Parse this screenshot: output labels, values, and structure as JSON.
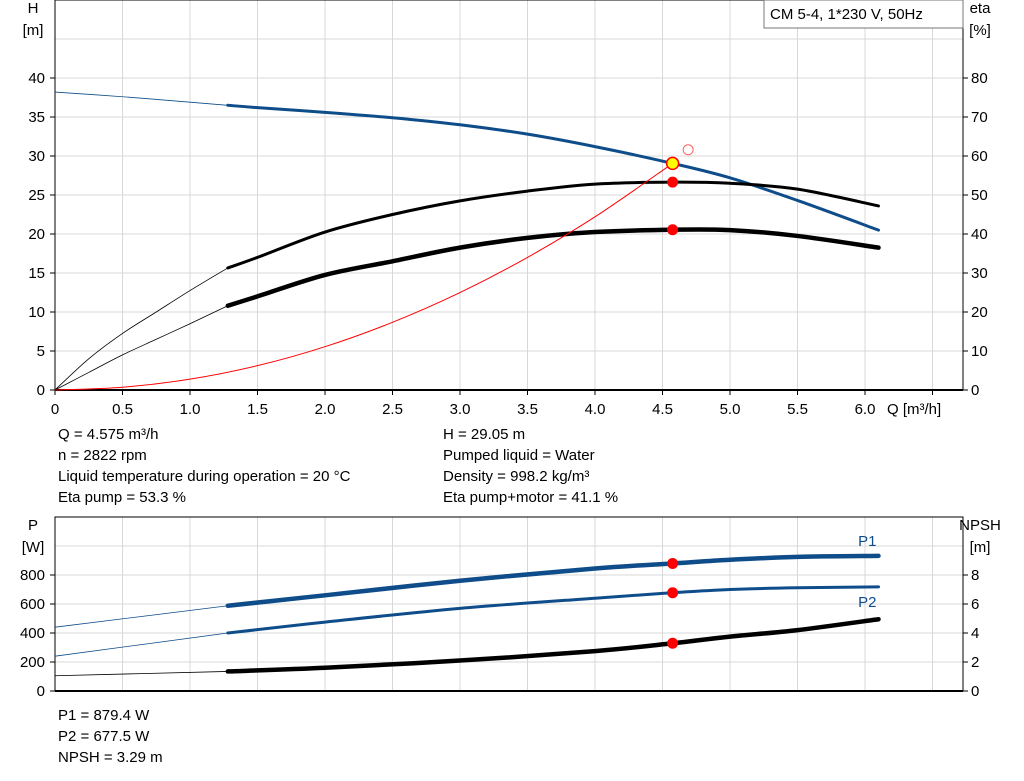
{
  "chart_data": [
    {
      "type": "line",
      "legend_box": "CM 5-4, 1*230 V, 50Hz",
      "legend_placement": "top-right",
      "xlabel": "Q [m³/h]",
      "ylabel_left": [
        "H",
        "[m]"
      ],
      "ylabel_right": [
        "eta",
        "[%]"
      ],
      "xlim": [
        0,
        6.73
      ],
      "ylim_left": [
        0,
        50
      ],
      "ylim_right": [
        0,
        100
      ],
      "xticks": [
        "0",
        "0.5",
        "1.0",
        "1.5",
        "2.0",
        "2.5",
        "3.0",
        "3.5",
        "4.0",
        "4.5",
        "5.0",
        "5.5",
        "6.0"
      ],
      "yticks_left": [
        "0",
        "5",
        "10",
        "15",
        "20",
        "25",
        "30",
        "35",
        "40"
      ],
      "yticks_right": [
        "0",
        "10",
        "20",
        "30",
        "40",
        "50",
        "60",
        "70",
        "80"
      ],
      "grid": true,
      "series": [
        {
          "axis": "left",
          "color": "#0e4d8a",
          "x": [
            0,
            0.5,
            1.0,
            1.28,
            1.5,
            2.0,
            2.5,
            3.0,
            3.5,
            4.0,
            4.575,
            5.0,
            5.5,
            6.1
          ],
          "values": [
            38.2,
            37.6,
            36.9,
            36.5,
            36.2,
            35.6,
            34.9,
            34.0,
            32.8,
            31.2,
            29.05,
            27.2,
            24.3,
            20.5
          ],
          "thin_until": 1.28
        },
        {
          "axis": "right",
          "color": "#000000",
          "x": [
            0,
            0.25,
            0.5,
            0.75,
            1.0,
            1.28,
            1.5,
            2.0,
            2.5,
            3.0,
            3.5,
            4.0,
            4.575,
            5.0,
            5.5,
            6.1
          ],
          "values": [
            0,
            8,
            14.5,
            20,
            25.5,
            31.3,
            34,
            40.5,
            45,
            48.5,
            51,
            52.8,
            53.3,
            53,
            51.5,
            47.2
          ],
          "thin_until": 1.28
        },
        {
          "axis": "right",
          "color": "#000000",
          "thick": true,
          "x": [
            0,
            0.25,
            0.5,
            0.75,
            1.0,
            1.28,
            1.5,
            2.0,
            2.5,
            3.0,
            3.5,
            4.0,
            4.575,
            5.0,
            5.5,
            6.1
          ],
          "values": [
            0,
            4.5,
            9,
            13,
            17,
            21.6,
            24,
            29.5,
            33,
            36.5,
            39,
            40.5,
            41.1,
            41,
            39.5,
            36.5
          ],
          "thin_until": 1.28
        },
        {
          "axis": "left",
          "color": "#ff0000",
          "system_curve": true,
          "x": [
            0,
            0.5,
            1.0,
            1.5,
            2.0,
            2.5,
            3.0,
            3.5,
            4.0,
            4.575
          ],
          "values": [
            0,
            0.35,
            1.39,
            3.12,
            5.55,
            8.68,
            12.49,
            17.0,
            22.2,
            29.05
          ]
        }
      ],
      "duty_point": {
        "q": 4.575,
        "h": 29.05,
        "eta_pump": 53.3,
        "eta_total": 41.1
      },
      "open_marker": {
        "q": 4.69,
        "h": 30.8
      }
    },
    {
      "type": "line",
      "ylabel_left": [
        "P",
        "[W]"
      ],
      "ylabel_right": [
        "NPSH",
        "[m]"
      ],
      "xlim": [
        0,
        6.73
      ],
      "ylim_left": [
        0,
        1200
      ],
      "ylim_right": [
        0,
        12
      ],
      "yticks_left": [
        "0",
        "200",
        "400",
        "600",
        "800"
      ],
      "yticks_right": [
        "0",
        "2",
        "4",
        "6",
        "8"
      ],
      "grid": true,
      "series": [
        {
          "name": "P1",
          "axis": "left",
          "color": "#0e4d8a",
          "thick": true,
          "x": [
            0,
            1.28,
            2.0,
            3.0,
            4.0,
            4.575,
            5.0,
            5.5,
            6.1
          ],
          "values": [
            440,
            588,
            660,
            760,
            845,
            879.4,
            905,
            925,
            932
          ],
          "thin_until": 1.28
        },
        {
          "name": "P2",
          "axis": "left",
          "color": "#0e4d8a",
          "x": [
            0,
            1.28,
            2.0,
            3.0,
            4.0,
            4.575,
            5.0,
            5.5,
            6.1
          ],
          "values": [
            240,
            400,
            475,
            570,
            640,
            677.5,
            700,
            712,
            718
          ],
          "thin_until": 1.28
        },
        {
          "axis": "right",
          "color": "#000000",
          "thick": true,
          "x": [
            0,
            1.28,
            2.0,
            3.0,
            4.0,
            4.575,
            5.0,
            5.5,
            6.1
          ],
          "values": [
            1.05,
            1.35,
            1.6,
            2.1,
            2.75,
            3.29,
            3.75,
            4.2,
            4.95
          ],
          "thin_until": 1.28
        }
      ],
      "duty_point": {
        "q": 4.575,
        "p1": 879.4,
        "p2": 677.5,
        "npsh": 3.29
      }
    }
  ],
  "info_top": {
    "left": [
      "Q = 4.575 m³/h",
      "n = 2822 rpm",
      "Liquid temperature during operation = 20 °C",
      "Eta pump = 53.3 %"
    ],
    "right": [
      "H = 29.05 m",
      "Pumped liquid = Water",
      "Density = 998.2 kg/m³",
      "Eta pump+motor = 41.1 %"
    ]
  },
  "info_bottom": [
    "P1 = 879.4 W",
    "P2 = 677.5 W",
    "NPSH = 3.29 m"
  ]
}
